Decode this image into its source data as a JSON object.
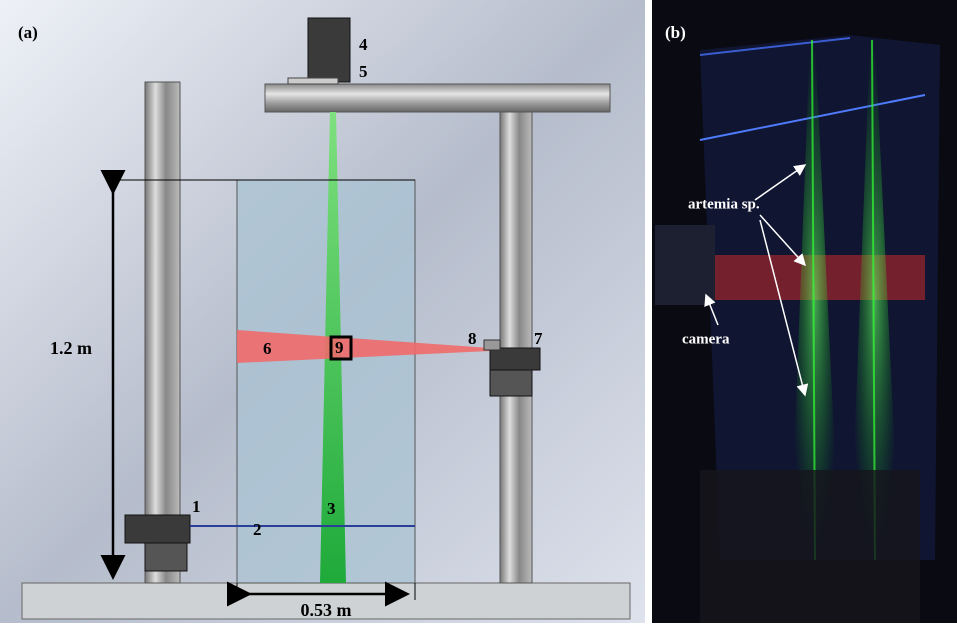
{
  "panel_a": {
    "label": "(a)",
    "height_label": "1.2 m",
    "width_label": "0.53 m",
    "parts": [
      "1",
      "2",
      "3",
      "4",
      "5",
      "6",
      "7",
      "8",
      "9"
    ]
  },
  "panel_b": {
    "label": "(b)",
    "annotations": [
      "artemia sp.",
      "camera"
    ]
  }
}
